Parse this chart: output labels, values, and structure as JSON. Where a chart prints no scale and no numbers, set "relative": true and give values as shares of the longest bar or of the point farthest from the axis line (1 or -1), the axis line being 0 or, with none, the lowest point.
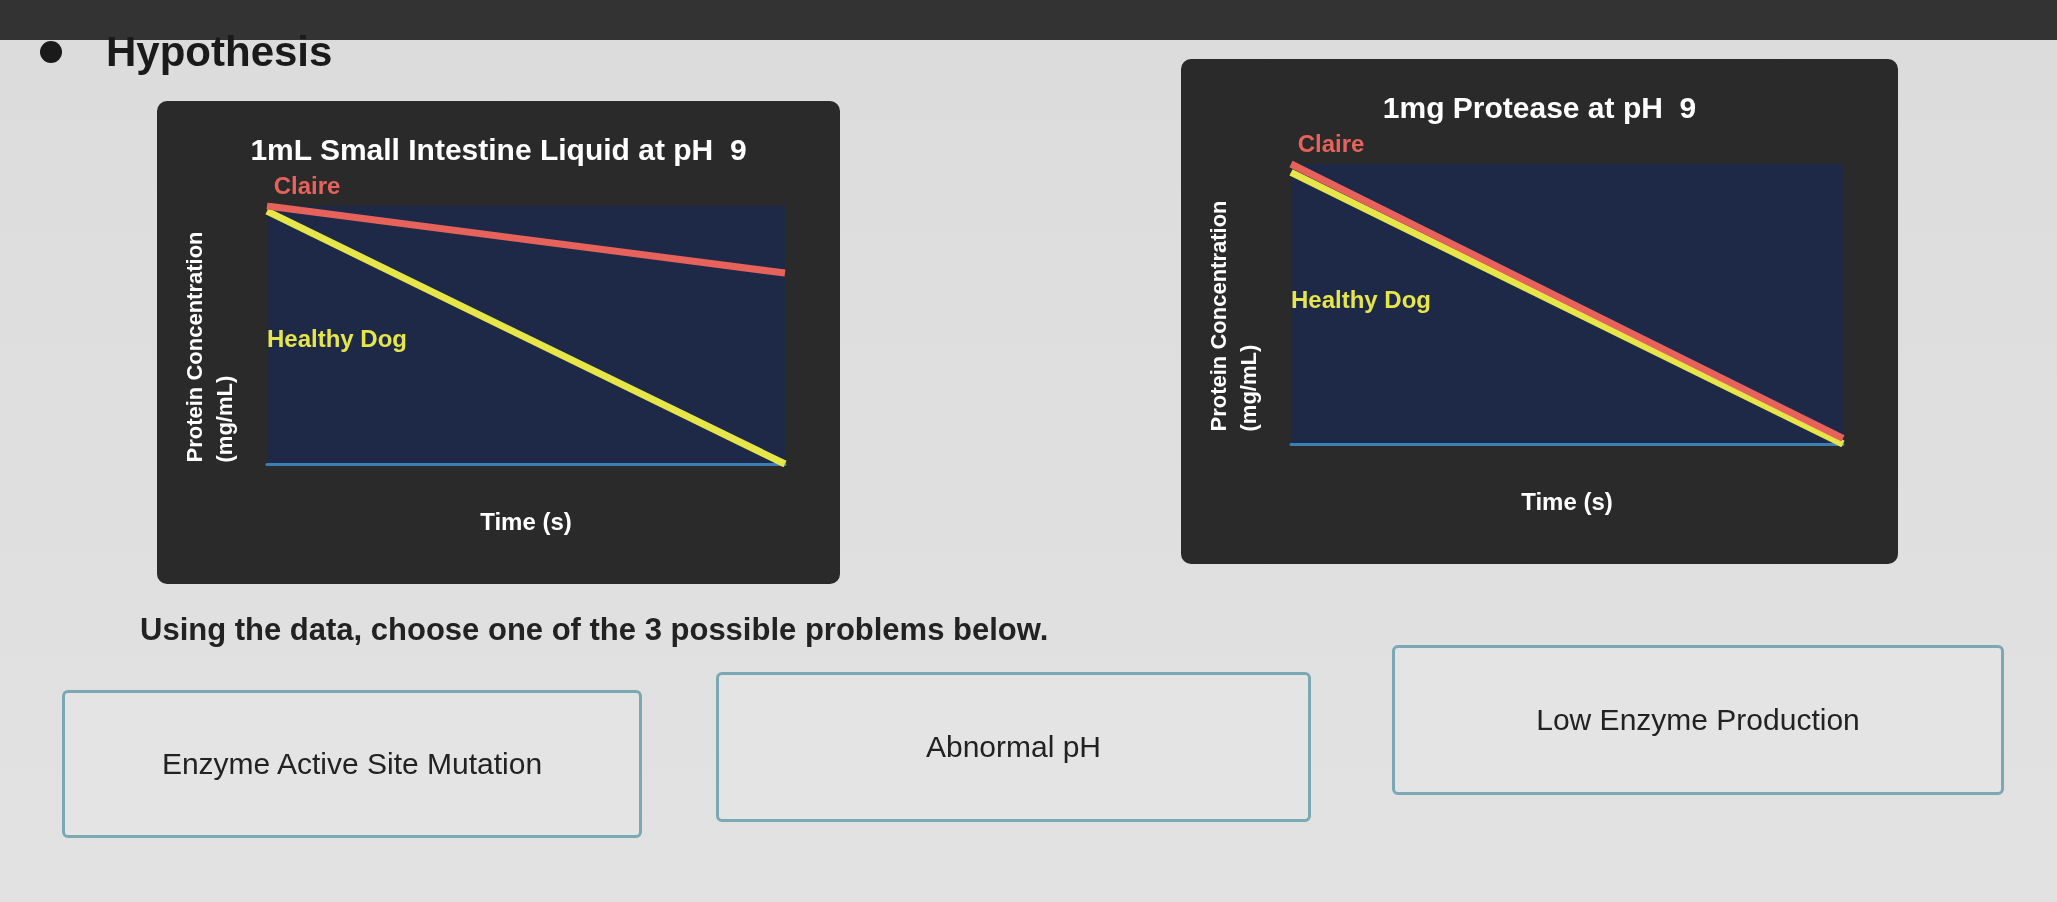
{
  "chart_data": [
    {
      "type": "other",
      "title": "Hypothesis"
    },
    {
      "type": "line",
      "title": "1mL Small Intestine Liquid at pH  9",
      "xlabel": "Time (s)",
      "ylabel": "Protein Concentration (mg/mL)",
      "categories": [
        null,
        null
      ],
      "relative": true,
      "grid": false,
      "legend": false,
      "marker": "none",
      "series": [
        {
          "name": "Claire",
          "color": "#e8625c",
          "values": [
            1,
            0.74
          ]
        },
        {
          "name": "Healthy Dog",
          "color": "#e6e64a",
          "values": [
            0.98,
            0
          ]
        }
      ]
    },
    {
      "type": "line",
      "title": "1mg Protease at pH  9",
      "xlabel": "Time (s)",
      "ylabel": "Protein Concentration (mg/mL)",
      "categories": [
        null,
        null
      ],
      "relative": true,
      "grid": false,
      "legend": false,
      "marker": "none",
      "series": [
        {
          "name": "Claire",
          "color": "#e8625c",
          "values": [
            1,
            0.02
          ]
        },
        {
          "name": "Healthy Dog",
          "color": "#e6e64a",
          "values": [
            0.97,
            0
          ]
        }
      ]
    },
    {
      "type": "other",
      "title": "Using the data, choose one of the 3 possible problems below.",
      "annotations": [
        "Enzyme Active Site Mutation",
        "Abnormal pH",
        "Low Enzyme Production"
      ]
    }
  ]
}
